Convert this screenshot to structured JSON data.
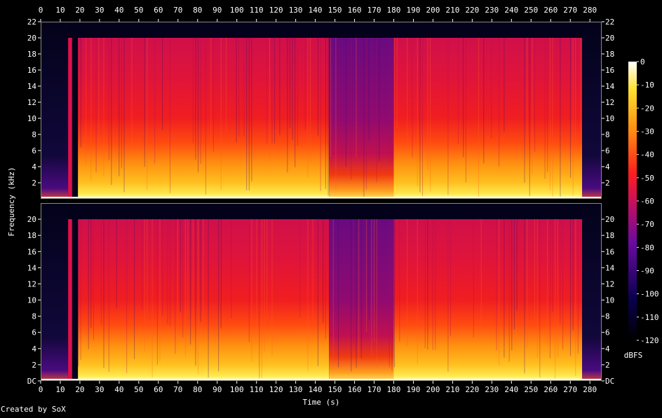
{
  "chart_data": {
    "type": "heatmap",
    "xlabel": "Time (s)",
    "ylabel": "Frequency (kHz)",
    "xlim": [
      0,
      286
    ],
    "ylim": [
      0,
      22
    ],
    "x_ticks": [
      "0",
      "10",
      "20",
      "30",
      "40",
      "50",
      "60",
      "70",
      "80",
      "90",
      "100",
      "110",
      "120",
      "130",
      "140",
      "150",
      "160",
      "170",
      "180",
      "190",
      "200",
      "210",
      "220",
      "230",
      "240",
      "250",
      "260",
      "270",
      "280"
    ],
    "y_ticks_top": [
      "2",
      "4",
      "6",
      "8",
      "10",
      "12",
      "14",
      "16",
      "18",
      "20",
      "22"
    ],
    "y_ticks_bottom": [
      "DC",
      "2",
      "4",
      "6",
      "8",
      "10",
      "12",
      "14",
      "16",
      "18",
      "20"
    ],
    "channels": [
      "left",
      "right"
    ],
    "content_range_s": [
      14,
      276
    ],
    "content_max_khz": 20,
    "quiet_section_s": [
      147,
      180
    ],
    "colorbar": {
      "label": "dBFS",
      "range": [
        -120,
        0
      ],
      "ticks": [
        "0",
        "-10",
        "-20",
        "-30",
        "-40",
        "-50",
        "-60",
        "-70",
        "-80",
        "-90",
        "-100",
        "-110",
        "-120"
      ]
    },
    "colors": {
      "background": "#000000",
      "loud": "#ffffe8",
      "mid": "#ff2020",
      "quiet": "#0a0040"
    }
  },
  "footer": {
    "credit": "Created by SoX"
  }
}
